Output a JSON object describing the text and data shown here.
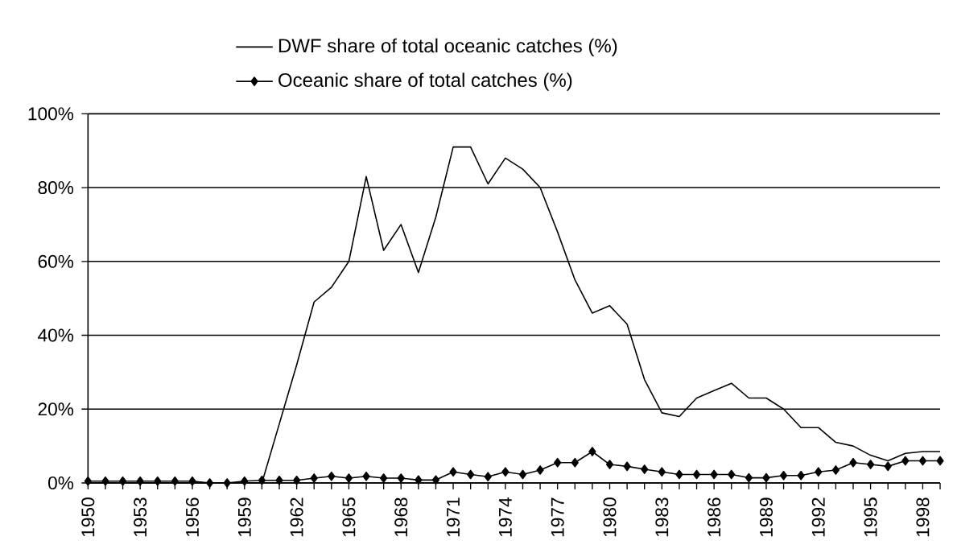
{
  "chart_data": {
    "type": "line",
    "x": [
      1950,
      1951,
      1952,
      1953,
      1954,
      1955,
      1956,
      1957,
      1958,
      1959,
      1960,
      1961,
      1962,
      1963,
      1964,
      1965,
      1966,
      1967,
      1968,
      1969,
      1970,
      1971,
      1972,
      1973,
      1974,
      1975,
      1976,
      1977,
      1978,
      1979,
      1980,
      1981,
      1982,
      1983,
      1984,
      1985,
      1986,
      1987,
      1988,
      1989,
      1990,
      1991,
      1992,
      1993,
      1994,
      1995,
      1996,
      1997,
      1998,
      1999
    ],
    "series": [
      {
        "name": "DWF share of total oceanic catches  (%)",
        "color": "#000000",
        "marker": "none",
        "values": [
          0,
          0,
          0,
          0,
          0,
          0,
          0,
          0,
          0,
          0,
          0,
          16,
          32,
          49,
          53,
          60,
          83,
          63,
          70,
          57,
          72,
          91,
          91,
          81,
          88,
          85,
          80,
          68,
          55,
          46,
          48,
          43,
          28,
          19,
          18,
          23,
          25,
          27,
          23,
          23,
          20,
          15,
          15,
          11,
          10,
          7.5,
          6,
          8,
          8.5,
          8.5
        ]
      },
      {
        "name": "Oceanic share of total catches (%)",
        "color": "#000000",
        "marker": "diamond",
        "values": [
          0.5,
          0.5,
          0.5,
          0.5,
          0.5,
          0.5,
          0.5,
          0,
          0,
          0.5,
          0.7,
          0.7,
          0.7,
          1.3,
          1.8,
          1.3,
          1.8,
          1.3,
          1.3,
          0.8,
          0.8,
          3,
          2.3,
          1.7,
          3,
          2.3,
          3.5,
          5.5,
          5.5,
          8.5,
          5,
          4.5,
          3.7,
          3,
          2.3,
          2.3,
          2.3,
          2.3,
          1.4,
          1.4,
          2,
          2,
          3,
          3.5,
          5.5,
          5,
          4.5,
          6,
          6,
          6
        ]
      }
    ],
    "xlim": [
      1950,
      1999
    ],
    "xticks": [
      1950,
      {
        "value": 1951,
        "label": null
      },
      {
        "value": 1952,
        "label": null
      },
      1953,
      {
        "value": 1954,
        "label": null
      },
      {
        "value": 1955,
        "label": null
      },
      1956,
      {
        "value": 1957,
        "label": null
      },
      {
        "value": 1958,
        "label": null
      },
      1959,
      {
        "value": 1960,
        "label": null
      },
      {
        "value": 1961,
        "label": null
      },
      1962,
      {
        "value": 1963,
        "label": null
      },
      {
        "value": 1964,
        "label": null
      },
      1965,
      {
        "value": 1966,
        "label": null
      },
      {
        "value": 1967,
        "label": null
      },
      1968,
      {
        "value": 1969,
        "label": null
      },
      {
        "value": 1970,
        "label": null
      },
      1971,
      {
        "value": 1972,
        "label": null
      },
      {
        "value": 1973,
        "label": null
      },
      1974,
      {
        "value": 1975,
        "label": null
      },
      {
        "value": 1976,
        "label": null
      },
      1977,
      {
        "value": 1978,
        "label": null
      },
      {
        "value": 1979,
        "label": null
      },
      1980,
      {
        "value": 1981,
        "label": null
      },
      {
        "value": 1982,
        "label": null
      },
      1983,
      {
        "value": 1984,
        "label": null
      },
      {
        "value": 1985,
        "label": null
      },
      1986,
      {
        "value": 1987,
        "label": null
      },
      {
        "value": 1988,
        "label": null
      },
      1989,
      {
        "value": 1990,
        "label": null
      },
      {
        "value": 1991,
        "label": null
      },
      1992,
      {
        "value": 1993,
        "label": null
      },
      {
        "value": 1994,
        "label": null
      },
      1995,
      {
        "value": 1996,
        "label": null
      },
      {
        "value": 1997,
        "label": null
      },
      1998,
      {
        "value": 1999,
        "label": null
      }
    ],
    "ylim": [
      0,
      100
    ],
    "yticks": [
      {
        "value": 0,
        "label": "0%"
      },
      {
        "value": 20,
        "label": "20%"
      },
      {
        "value": 40,
        "label": "40%"
      },
      {
        "value": 60,
        "label": "60%"
      },
      {
        "value": 80,
        "label": "80%"
      },
      {
        "value": 100,
        "label": "100%"
      }
    ],
    "grid": "y",
    "legend": "top",
    "line_style": "solid"
  }
}
